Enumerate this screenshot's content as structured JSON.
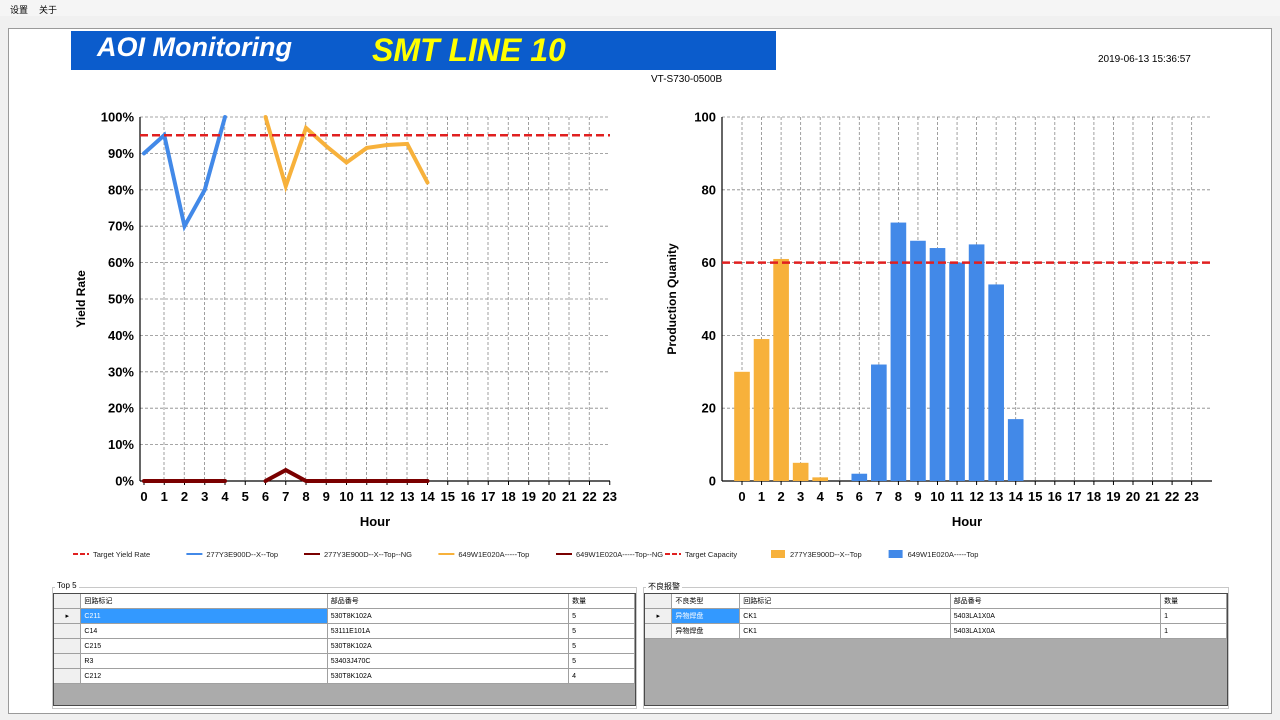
{
  "menu": {
    "settings": "设置",
    "about": "关于"
  },
  "header": {
    "app_title": "AOI Monitoring",
    "line_title": "SMT LINE 10",
    "datetime": "2019-06-13 15:36:57",
    "machine": "VT-S730-0500B"
  },
  "colors": {
    "banner": "#0b5ccc",
    "line_title": "#ffff00",
    "target": "#e02020",
    "blue": "#4289e8",
    "orange": "#f7b13b",
    "maroon": "#7a0000"
  },
  "chart_data": [
    {
      "type": "line",
      "xlabel": "Hour",
      "ylabel": "Yield Rate",
      "x": [
        0,
        1,
        2,
        3,
        4,
        5,
        6,
        7,
        8,
        9,
        10,
        11,
        12,
        13,
        14,
        15,
        16,
        17,
        18,
        19,
        20,
        21,
        22,
        23
      ],
      "y_ticks": [
        "0%",
        "10%",
        "20%",
        "30%",
        "40%",
        "50%",
        "60%",
        "70%",
        "80%",
        "90%",
        "100%"
      ],
      "ylim": [
        0,
        100
      ],
      "target": {
        "name": "Target Yield Rate",
        "value": 95,
        "style": "dashed",
        "color": "#e02020"
      },
      "grid": true,
      "legend": "bottom",
      "series": [
        {
          "name": "277Y3E900D--X--Top",
          "color": "#4289e8",
          "points": [
            [
              0,
              90
            ],
            [
              1,
              95
            ],
            [
              2,
              70
            ],
            [
              3,
              80
            ],
            [
              4,
              100
            ]
          ]
        },
        {
          "name": "277Y3E900D--X--Top--NG",
          "color": "#7a0000",
          "points": [
            [
              0,
              0
            ],
            [
              1,
              0
            ],
            [
              2,
              0
            ],
            [
              3,
              0
            ],
            [
              4,
              0
            ]
          ]
        },
        {
          "name": "649W1E020A-----Top",
          "color": "#f7b13b",
          "points": [
            [
              6,
              100
            ],
            [
              7,
              81
            ],
            [
              8,
              97
            ],
            [
              9,
              92
            ],
            [
              10,
              87.5
            ],
            [
              11,
              91.5
            ],
            [
              12,
              92.3
            ],
            [
              13,
              92.6
            ],
            [
              14,
              82
            ]
          ]
        },
        {
          "name": "649W1E020A-----Top--NG",
          "color": "#7a0000",
          "points": [
            [
              6,
              0
            ],
            [
              7,
              3
            ],
            [
              8,
              0
            ],
            [
              9,
              0
            ],
            [
              10,
              0
            ],
            [
              11,
              0
            ],
            [
              12,
              0
            ],
            [
              13,
              0
            ],
            [
              14,
              0
            ]
          ]
        }
      ]
    },
    {
      "type": "bar",
      "xlabel": "Hour",
      "ylabel": "Production Quanity",
      "x": [
        0,
        1,
        2,
        3,
        4,
        5,
        6,
        7,
        8,
        9,
        10,
        11,
        12,
        13,
        14,
        15,
        16,
        17,
        18,
        19,
        20,
        21,
        22,
        23
      ],
      "y_ticks": [
        "0",
        "20",
        "40",
        "60",
        "80",
        "100"
      ],
      "ylim": [
        0,
        100
      ],
      "target": {
        "name": "Target Capacity",
        "value": 60,
        "style": "dashed",
        "color": "#e02020"
      },
      "grid": true,
      "legend": "bottom",
      "series": [
        {
          "name": "277Y3E900D--X--Top",
          "color": "#f7b13b",
          "points": [
            [
              0,
              30
            ],
            [
              1,
              39
            ],
            [
              2,
              61
            ],
            [
              3,
              5
            ],
            [
              4,
              1
            ]
          ]
        },
        {
          "name": "649W1E020A-----Top",
          "color": "#4289e8",
          "points": [
            [
              6,
              2
            ],
            [
              7,
              32
            ],
            [
              8,
              71
            ],
            [
              9,
              66
            ],
            [
              10,
              64
            ],
            [
              11,
              60
            ],
            [
              12,
              65
            ],
            [
              13,
              54
            ],
            [
              14,
              17
            ]
          ]
        }
      ]
    }
  ],
  "top5": {
    "title": "Top 5",
    "columns": [
      "回路标记",
      "部品番号",
      "数量"
    ],
    "rows": [
      [
        "C211",
        "530T8K102A",
        "5"
      ],
      [
        "C14",
        "53111E101A",
        "5"
      ],
      [
        "C215",
        "530T8K102A",
        "5"
      ],
      [
        "R3",
        "53403J470C",
        "5"
      ],
      [
        "C212",
        "530T8K102A",
        "4"
      ]
    ]
  },
  "alarm": {
    "title": "不良报警",
    "columns": [
      "不良类型",
      "回路标记",
      "部品番号",
      "数量"
    ],
    "rows": [
      [
        "异物焊盘",
        "CK1",
        "5403LA1X0A",
        "1"
      ],
      [
        "异物焊盘",
        "CK1",
        "5403LA1X0A",
        "1"
      ]
    ]
  },
  "icons": {
    "row_pointer": "triangle-right-icon"
  }
}
